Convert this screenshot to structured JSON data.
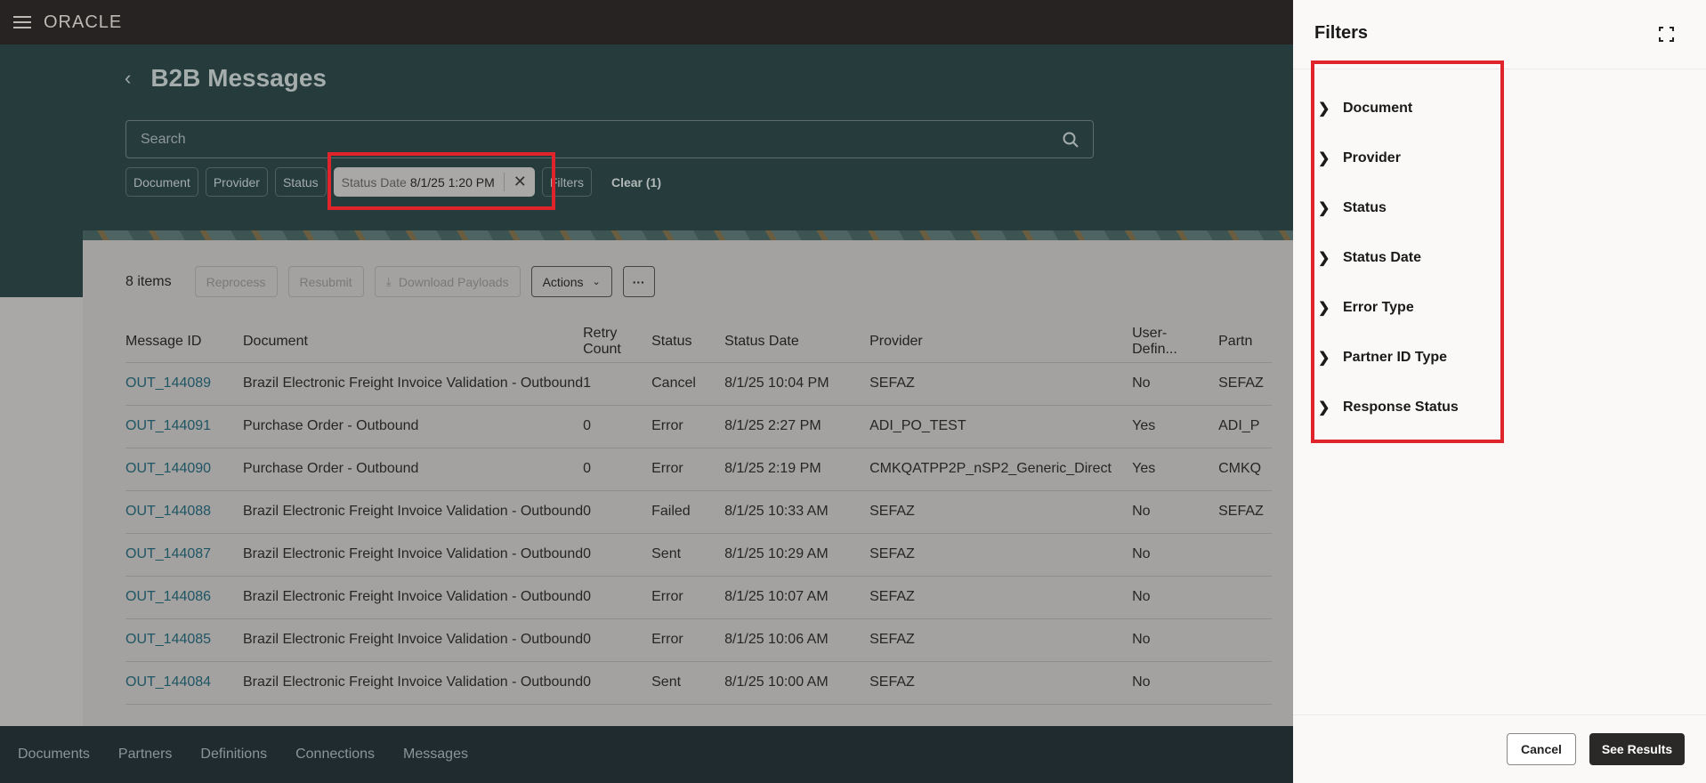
{
  "app": {
    "logo": "ORACLE"
  },
  "page": {
    "title": "B2B Messages"
  },
  "search": {
    "placeholder": "Search"
  },
  "chips": {
    "document": "Document",
    "provider": "Provider",
    "status": "Status",
    "status_date_label": "Status Date",
    "status_date_value": "8/1/25 1:20 PM",
    "filters": "Filters",
    "clear": "Clear (1)"
  },
  "toolbar": {
    "count": "8 items",
    "reprocess": "Reprocess",
    "resubmit": "Resubmit",
    "download": "Download Payloads",
    "actions": "Actions"
  },
  "table": {
    "headers": [
      "Message ID",
      "Document",
      "Retry Count",
      "Status",
      "Status Date",
      "Provider",
      "User-Defin...",
      "Partn"
    ],
    "rows": [
      [
        "OUT_144089",
        "Brazil Electronic Freight Invoice Validation - Outbound",
        "1",
        "Cancel",
        "8/1/25 10:04 PM",
        "SEFAZ",
        "No",
        "SEFAZ"
      ],
      [
        "OUT_144091",
        "Purchase Order - Outbound",
        "0",
        "Error",
        "8/1/25 2:27 PM",
        "ADI_PO_TEST",
        "Yes",
        "ADI_P"
      ],
      [
        "OUT_144090",
        "Purchase Order - Outbound",
        "0",
        "Error",
        "8/1/25 2:19 PM",
        "CMKQATPP2P_nSP2_Generic_Direct",
        "Yes",
        "CMKQ"
      ],
      [
        "OUT_144088",
        "Brazil Electronic Freight Invoice Validation - Outbound",
        "0",
        "Failed",
        "8/1/25 10:33 AM",
        "SEFAZ",
        "No",
        "SEFAZ"
      ],
      [
        "OUT_144087",
        "Brazil Electronic Freight Invoice Validation - Outbound",
        "0",
        "Sent",
        "8/1/25 10:29 AM",
        "SEFAZ",
        "No",
        ""
      ],
      [
        "OUT_144086",
        "Brazil Electronic Freight Invoice Validation - Outbound",
        "0",
        "Error",
        "8/1/25 10:07 AM",
        "SEFAZ",
        "No",
        ""
      ],
      [
        "OUT_144085",
        "Brazil Electronic Freight Invoice Validation - Outbound",
        "0",
        "Error",
        "8/1/25 10:06 AM",
        "SEFAZ",
        "No",
        ""
      ],
      [
        "OUT_144084",
        "Brazil Electronic Freight Invoice Validation - Outbound",
        "0",
        "Sent",
        "8/1/25 10:00 AM",
        "SEFAZ",
        "No",
        ""
      ]
    ]
  },
  "bottom_nav": [
    "Documents",
    "Partners",
    "Definitions",
    "Connections",
    "Messages"
  ],
  "filters_panel": {
    "title": "Filters",
    "items": [
      "Document",
      "Provider",
      "Status",
      "Status Date",
      "Error Type",
      "Partner ID Type",
      "Response Status"
    ],
    "cancel": "Cancel",
    "see_results": "See Results"
  },
  "colors": {
    "highlight": "#e0242b",
    "link": "#1f5564",
    "header_teal": "#263b3c"
  }
}
